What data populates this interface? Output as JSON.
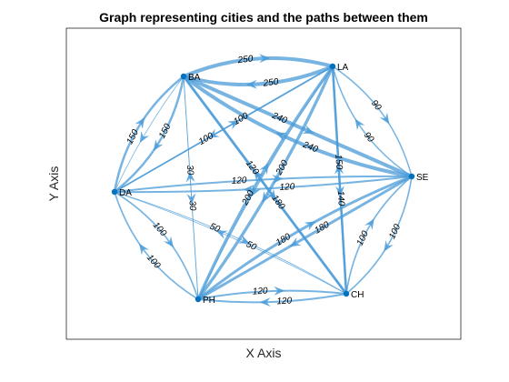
{
  "title": "Graph representing cities and the paths between them",
  "xlabel": "X Axis",
  "ylabel": "Y Axis",
  "colors": {
    "edge": "#4a9bd8",
    "node": "#0072bd",
    "axes": "#262626"
  },
  "nodes": [
    {
      "id": "BA",
      "label": "BA"
    },
    {
      "id": "LA",
      "label": "LA"
    },
    {
      "id": "SE",
      "label": "SE"
    },
    {
      "id": "CH",
      "label": "CH"
    },
    {
      "id": "PH",
      "label": "PH"
    },
    {
      "id": "DA",
      "label": "DA"
    }
  ],
  "edges": [
    {
      "from": "BA",
      "to": "LA",
      "weight": "250",
      "bend": -14
    },
    {
      "from": "LA",
      "to": "BA",
      "weight": "250",
      "bend": -14
    },
    {
      "from": "BA",
      "to": "SE",
      "weight": "240",
      "bend": 0
    },
    {
      "from": "SE",
      "to": "BA",
      "weight": "240",
      "bend": -16
    },
    {
      "from": "BA",
      "to": "DA",
      "weight": "150",
      "bend": -14
    },
    {
      "from": "DA",
      "to": "BA",
      "weight": "150",
      "bend": -14
    },
    {
      "from": "BA",
      "to": "PH",
      "weight": "30",
      "bend": 0
    },
    {
      "from": "PH",
      "to": "BA",
      "weight": "30",
      "bend": 0
    },
    {
      "from": "BA",
      "to": "CH",
      "weight": "120",
      "bend": 0
    },
    {
      "from": "CH",
      "to": "BA",
      "weight": "180",
      "bend": 0
    },
    {
      "from": "LA",
      "to": "DA",
      "weight": "100",
      "bend": 0
    },
    {
      "from": "DA",
      "to": "LA",
      "weight": "100",
      "bend": 0
    },
    {
      "from": "LA",
      "to": "SE",
      "weight": "90",
      "bend": -14
    },
    {
      "from": "SE",
      "to": "LA",
      "weight": "90",
      "bend": -14
    },
    {
      "from": "LA",
      "to": "PH",
      "weight": "200",
      "bend": -8
    },
    {
      "from": "PH",
      "to": "LA",
      "weight": "200",
      "bend": -8
    },
    {
      "from": "LA",
      "to": "CH",
      "weight": "150",
      "bend": 0
    },
    {
      "from": "CH",
      "to": "LA",
      "weight": "140",
      "bend": 0
    },
    {
      "from": "DA",
      "to": "SE",
      "weight": "120",
      "bend": -5
    },
    {
      "from": "SE",
      "to": "DA",
      "weight": "120",
      "bend": -5
    },
    {
      "from": "DA",
      "to": "PH",
      "weight": "100",
      "bend": -14
    },
    {
      "from": "PH",
      "to": "DA",
      "weight": "100",
      "bend": -14
    },
    {
      "from": "DA",
      "to": "CH",
      "weight": "50",
      "bend": -8
    },
    {
      "from": "CH",
      "to": "DA",
      "weight": "50",
      "bend": 6
    },
    {
      "from": "SE",
      "to": "CH",
      "weight": "100",
      "bend": -14
    },
    {
      "from": "CH",
      "to": "SE",
      "weight": "100",
      "bend": -14
    },
    {
      "from": "SE",
      "to": "PH",
      "weight": "180",
      "bend": 0
    },
    {
      "from": "PH",
      "to": "SE",
      "weight": "180",
      "bend": -10
    },
    {
      "from": "PH",
      "to": "CH",
      "weight": "120",
      "bend": -6
    },
    {
      "from": "CH",
      "to": "PH",
      "weight": "120",
      "bend": -6
    },
    {
      "from": "LA",
      "to": "PH",
      "weight": "",
      "bend": 6
    },
    {
      "from": "BA",
      "to": "DA",
      "weight": "",
      "bend": 4
    }
  ]
}
